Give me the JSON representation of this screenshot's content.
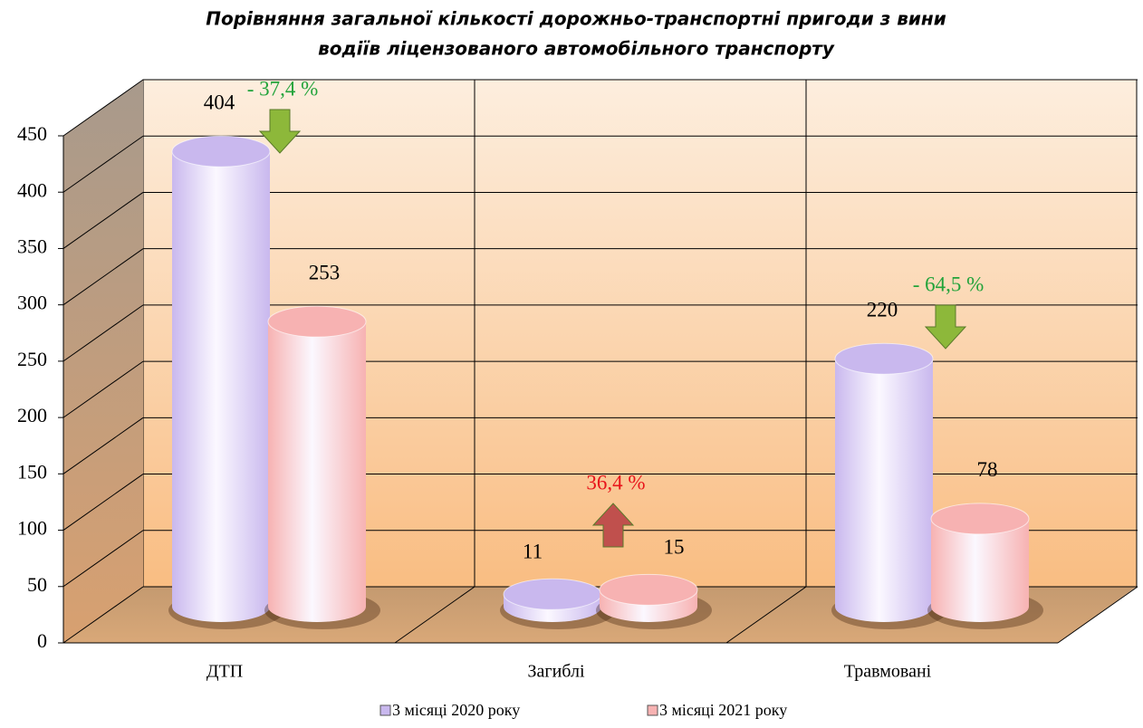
{
  "chart_data": {
    "type": "bar3d",
    "title": "Порівняння загальної кількості дорожньо-транспортні пригоди з вини",
    "subtitle": "водіїв ліцензованого автомобільного транспорту",
    "categories": [
      "ДТП",
      "Загиблі",
      "Травмовані"
    ],
    "series": [
      {
        "name": "3 місяці 2020 року",
        "color": "#c9b8ee",
        "values": [
          404,
          11,
          220
        ]
      },
      {
        "name": "3 місяці 2021 року",
        "color": "#f7b2b2",
        "values": [
          253,
          15,
          78
        ]
      }
    ],
    "ylim": [
      0,
      450
    ],
    "yticks": [
      0,
      50,
      100,
      150,
      200,
      250,
      300,
      350,
      400,
      450
    ],
    "grid": true,
    "legend": "bottom",
    "annotations": [
      {
        "text": "- 37,4 %",
        "color": "#22a33a",
        "arrow": "down",
        "arrow_color": "#8db83a"
      },
      {
        "text": "36,4 %",
        "color": "#e8141b",
        "arrow": "up",
        "arrow_color": "#c0504d"
      },
      {
        "text": "- 64,5 %",
        "color": "#22a33a",
        "arrow": "down",
        "arrow_color": "#8db83a"
      }
    ]
  }
}
